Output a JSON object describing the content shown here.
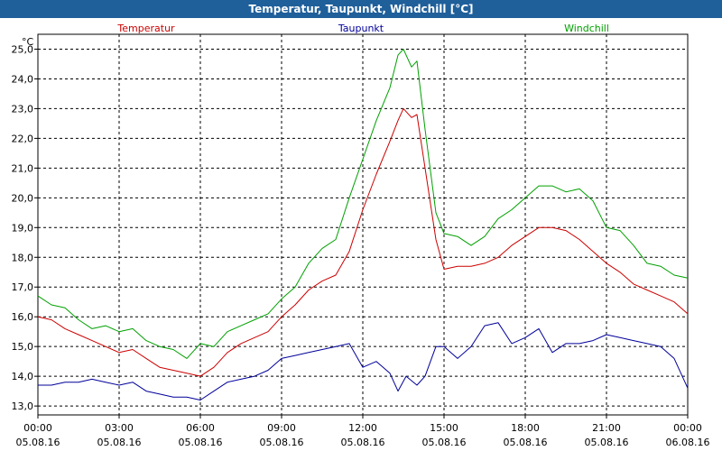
{
  "window": {
    "title": "Temperatur, Taupunkt, Windchill [°C]"
  },
  "chart_data": {
    "type": "line",
    "title": "Temperatur, Taupunkt, Windchill [°C]",
    "ylabel": "°C",
    "ylim": [
      12.7,
      25.5
    ],
    "y_ticks": [
      "13,0",
      "14,0",
      "15,0",
      "16,0",
      "17,0",
      "18,0",
      "19,0",
      "20,0",
      "21,0",
      "22,0",
      "23,0",
      "24,0",
      "25,0"
    ],
    "y_tick_values": [
      13,
      14,
      15,
      16,
      17,
      18,
      19,
      20,
      21,
      22,
      23,
      24,
      25
    ],
    "xlim": [
      0,
      24
    ],
    "x_tick_values": [
      0,
      3,
      6,
      9,
      12,
      15,
      18,
      21,
      24
    ],
    "x_ticks": [
      {
        "time": "00:00",
        "date": "05.08.16"
      },
      {
        "time": "03:00",
        "date": "05.08.16"
      },
      {
        "time": "06:00",
        "date": "05.08.16"
      },
      {
        "time": "09:00",
        "date": "05.08.16"
      },
      {
        "time": "12:00",
        "date": "05.08.16"
      },
      {
        "time": "15:00",
        "date": "05.08.16"
      },
      {
        "time": "18:00",
        "date": "05.08.16"
      },
      {
        "time": "21:00",
        "date": "05.08.16"
      },
      {
        "time": "00:00",
        "date": "06.08.16"
      }
    ],
    "grid": true,
    "legend_position": "top",
    "series": [
      {
        "name": "Temperatur",
        "color": "#cc0000",
        "points": [
          [
            0,
            16.0
          ],
          [
            0.5,
            15.9
          ],
          [
            1,
            15.6
          ],
          [
            1.5,
            15.4
          ],
          [
            2,
            15.2
          ],
          [
            2.5,
            15.0
          ],
          [
            3,
            14.8
          ],
          [
            3.5,
            14.9
          ],
          [
            4,
            14.6
          ],
          [
            4.5,
            14.3
          ],
          [
            5,
            14.2
          ],
          [
            5.5,
            14.1
          ],
          [
            6,
            14.0
          ],
          [
            6.5,
            14.3
          ],
          [
            7,
            14.8
          ],
          [
            7.5,
            15.1
          ],
          [
            8,
            15.3
          ],
          [
            8.5,
            15.5
          ],
          [
            9,
            16.0
          ],
          [
            9.5,
            16.4
          ],
          [
            10,
            16.9
          ],
          [
            10.5,
            17.2
          ],
          [
            11,
            17.4
          ],
          [
            11.5,
            18.2
          ],
          [
            12,
            19.6
          ],
          [
            12.5,
            20.8
          ],
          [
            13,
            21.9
          ],
          [
            13.3,
            22.6
          ],
          [
            13.5,
            23.0
          ],
          [
            13.8,
            22.7
          ],
          [
            14,
            22.8
          ],
          [
            14.3,
            21.0
          ],
          [
            14.7,
            18.6
          ],
          [
            15,
            17.6
          ],
          [
            15.5,
            17.7
          ],
          [
            16,
            17.7
          ],
          [
            16.5,
            17.8
          ],
          [
            17,
            18.0
          ],
          [
            17.5,
            18.4
          ],
          [
            18,
            18.7
          ],
          [
            18.5,
            19.0
          ],
          [
            19,
            19.0
          ],
          [
            19.5,
            18.9
          ],
          [
            20,
            18.6
          ],
          [
            20.5,
            18.2
          ],
          [
            21,
            17.8
          ],
          [
            21.5,
            17.5
          ],
          [
            22,
            17.1
          ],
          [
            22.5,
            16.9
          ],
          [
            23,
            16.7
          ],
          [
            23.5,
            16.5
          ],
          [
            24,
            16.1
          ]
        ]
      },
      {
        "name": "Taupunkt",
        "color": "#000099",
        "points": [
          [
            0,
            13.7
          ],
          [
            0.5,
            13.7
          ],
          [
            1,
            13.8
          ],
          [
            1.5,
            13.8
          ],
          [
            2,
            13.9
          ],
          [
            2.5,
            13.8
          ],
          [
            3,
            13.7
          ],
          [
            3.5,
            13.8
          ],
          [
            4,
            13.5
          ],
          [
            4.5,
            13.4
          ],
          [
            5,
            13.3
          ],
          [
            5.5,
            13.3
          ],
          [
            6,
            13.2
          ],
          [
            6.5,
            13.5
          ],
          [
            7,
            13.8
          ],
          [
            7.5,
            13.9
          ],
          [
            8,
            14.0
          ],
          [
            8.5,
            14.2
          ],
          [
            9,
            14.6
          ],
          [
            9.5,
            14.7
          ],
          [
            10,
            14.8
          ],
          [
            10.5,
            14.9
          ],
          [
            11,
            15.0
          ],
          [
            11.5,
            15.1
          ],
          [
            12,
            14.3
          ],
          [
            12.5,
            14.5
          ],
          [
            13,
            14.1
          ],
          [
            13.3,
            13.5
          ],
          [
            13.6,
            14.0
          ],
          [
            14,
            13.7
          ],
          [
            14.3,
            14.0
          ],
          [
            14.7,
            15.0
          ],
          [
            15,
            15.0
          ],
          [
            15.5,
            14.6
          ],
          [
            16,
            15.0
          ],
          [
            16.5,
            15.7
          ],
          [
            17,
            15.8
          ],
          [
            17.5,
            15.1
          ],
          [
            18,
            15.3
          ],
          [
            18.5,
            15.6
          ],
          [
            19,
            14.8
          ],
          [
            19.5,
            15.1
          ],
          [
            20,
            15.1
          ],
          [
            20.5,
            15.2
          ],
          [
            21,
            15.4
          ],
          [
            21.5,
            15.3
          ],
          [
            22,
            15.2
          ],
          [
            22.5,
            15.1
          ],
          [
            23,
            15.0
          ],
          [
            23.5,
            14.6
          ],
          [
            24,
            13.6
          ]
        ]
      },
      {
        "name": "Windchill",
        "color": "#00a000",
        "points": [
          [
            0,
            16.7
          ],
          [
            0.5,
            16.4
          ],
          [
            1,
            16.3
          ],
          [
            1.5,
            15.9
          ],
          [
            2,
            15.6
          ],
          [
            2.5,
            15.7
          ],
          [
            3,
            15.5
          ],
          [
            3.5,
            15.6
          ],
          [
            4,
            15.2
          ],
          [
            4.5,
            15.0
          ],
          [
            5,
            14.9
          ],
          [
            5.5,
            14.6
          ],
          [
            6,
            15.1
          ],
          [
            6.5,
            15.0
          ],
          [
            7,
            15.5
          ],
          [
            7.5,
            15.7
          ],
          [
            8,
            15.9
          ],
          [
            8.5,
            16.1
          ],
          [
            9,
            16.6
          ],
          [
            9.5,
            17.0
          ],
          [
            10,
            17.8
          ],
          [
            10.5,
            18.3
          ],
          [
            11,
            18.6
          ],
          [
            11.5,
            20.0
          ],
          [
            12,
            21.3
          ],
          [
            12.5,
            22.6
          ],
          [
            13,
            23.7
          ],
          [
            13.3,
            24.8
          ],
          [
            13.5,
            25.0
          ],
          [
            13.8,
            24.4
          ],
          [
            14,
            24.6
          ],
          [
            14.3,
            22.3
          ],
          [
            14.7,
            19.5
          ],
          [
            15,
            18.8
          ],
          [
            15.5,
            18.7
          ],
          [
            16,
            18.4
          ],
          [
            16.5,
            18.7
          ],
          [
            17,
            19.3
          ],
          [
            17.5,
            19.6
          ],
          [
            18,
            20.0
          ],
          [
            18.5,
            20.4
          ],
          [
            19,
            20.4
          ],
          [
            19.5,
            20.2
          ],
          [
            20,
            20.3
          ],
          [
            20.5,
            19.9
          ],
          [
            21,
            19.0
          ],
          [
            21.5,
            18.9
          ],
          [
            22,
            18.4
          ],
          [
            22.5,
            17.8
          ],
          [
            23,
            17.7
          ],
          [
            23.5,
            17.4
          ],
          [
            24,
            17.3
          ]
        ]
      }
    ]
  }
}
